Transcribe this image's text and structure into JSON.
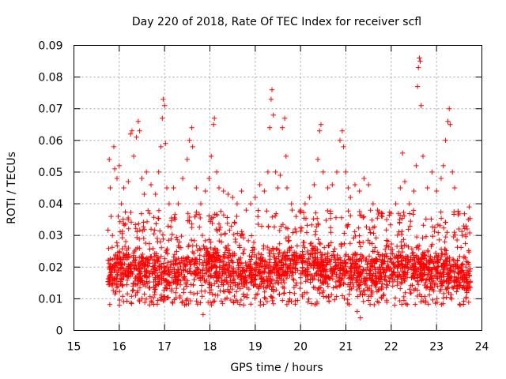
{
  "chart_data": {
    "type": "scatter",
    "title": "Day 220 of 2018, Rate Of TEC Index for receiver scfl",
    "xlabel": "GPS time / hours",
    "ylabel": "ROTI / TECUs",
    "xlim": [
      15,
      24
    ],
    "ylim": [
      0,
      0.09
    ],
    "xticks": [
      "15",
      "16",
      "17",
      "18",
      "19",
      "20",
      "21",
      "22",
      "23",
      "24"
    ],
    "yticks": [
      "0",
      "0.01",
      "0.02",
      "0.03",
      "0.04",
      "0.05",
      "0.06",
      "0.07",
      "0.08",
      "0.09"
    ],
    "grid": true,
    "marker": "+",
    "color": "#ff0000",
    "x_range_of_data": [
      15.75,
      23.75
    ],
    "series": [
      {
        "name": "ROTI",
        "points": [
          [
            15.78,
            0.054
          ],
          [
            15.8,
            0.045
          ],
          [
            15.82,
            0.036
          ],
          [
            15.85,
            0.03
          ],
          [
            15.88,
            0.058
          ],
          [
            15.9,
            0.051
          ],
          [
            15.95,
            0.048
          ],
          [
            16.0,
            0.052
          ],
          [
            16.05,
            0.04
          ],
          [
            16.1,
            0.045
          ],
          [
            16.2,
            0.047
          ],
          [
            16.25,
            0.062
          ],
          [
            16.28,
            0.063
          ],
          [
            16.32,
            0.055
          ],
          [
            16.38,
            0.061
          ],
          [
            16.42,
            0.066
          ],
          [
            16.45,
            0.063
          ],
          [
            16.5,
            0.048
          ],
          [
            16.55,
            0.043
          ],
          [
            16.6,
            0.05
          ],
          [
            16.7,
            0.046
          ],
          [
            16.8,
            0.043
          ],
          [
            16.87,
            0.05
          ],
          [
            16.92,
            0.058
          ],
          [
            16.95,
            0.067
          ],
          [
            16.97,
            0.073
          ],
          [
            17.0,
            0.071
          ],
          [
            17.02,
            0.059
          ],
          [
            17.05,
            0.045
          ],
          [
            17.1,
            0.04
          ],
          [
            17.2,
            0.045
          ],
          [
            17.3,
            0.04
          ],
          [
            17.4,
            0.048
          ],
          [
            17.5,
            0.054
          ],
          [
            17.55,
            0.06
          ],
          [
            17.6,
            0.064
          ],
          [
            17.62,
            0.058
          ],
          [
            17.7,
            0.045
          ],
          [
            17.8,
            0.04
          ],
          [
            17.9,
            0.044
          ],
          [
            17.98,
            0.048
          ],
          [
            18.03,
            0.055
          ],
          [
            18.08,
            0.065
          ],
          [
            18.1,
            0.067
          ],
          [
            18.15,
            0.05
          ],
          [
            18.2,
            0.045
          ],
          [
            18.3,
            0.044
          ],
          [
            18.4,
            0.043
          ],
          [
            18.5,
            0.042
          ],
          [
            18.6,
            0.04
          ],
          [
            18.7,
            0.044
          ],
          [
            18.8,
            0.038
          ],
          [
            18.9,
            0.04
          ],
          [
            19.0,
            0.042
          ],
          [
            19.1,
            0.046
          ],
          [
            19.2,
            0.044
          ],
          [
            19.28,
            0.05
          ],
          [
            19.32,
            0.064
          ],
          [
            19.35,
            0.073
          ],
          [
            19.37,
            0.076
          ],
          [
            19.4,
            0.068
          ],
          [
            19.45,
            0.05
          ],
          [
            19.5,
            0.045
          ],
          [
            19.55,
            0.049
          ],
          [
            19.6,
            0.064
          ],
          [
            19.65,
            0.067
          ],
          [
            19.68,
            0.055
          ],
          [
            19.7,
            0.045
          ],
          [
            19.8,
            0.04
          ],
          [
            19.9,
            0.036
          ],
          [
            20.0,
            0.038
          ],
          [
            20.1,
            0.04
          ],
          [
            20.2,
            0.042
          ],
          [
            20.3,
            0.046
          ],
          [
            20.38,
            0.054
          ],
          [
            20.42,
            0.063
          ],
          [
            20.45,
            0.065
          ],
          [
            20.5,
            0.05
          ],
          [
            20.6,
            0.045
          ],
          [
            20.7,
            0.046
          ],
          [
            20.8,
            0.05
          ],
          [
            20.87,
            0.06
          ],
          [
            20.92,
            0.063
          ],
          [
            20.95,
            0.058
          ],
          [
            21.0,
            0.05
          ],
          [
            21.05,
            0.045
          ],
          [
            21.1,
            0.042
          ],
          [
            21.2,
            0.046
          ],
          [
            21.3,
            0.044
          ],
          [
            21.4,
            0.048
          ],
          [
            21.5,
            0.046
          ],
          [
            21.6,
            0.04
          ],
          [
            21.7,
            0.038
          ],
          [
            21.8,
            0.036
          ],
          [
            21.9,
            0.035
          ],
          [
            22.0,
            0.037
          ],
          [
            22.1,
            0.04
          ],
          [
            22.2,
            0.045
          ],
          [
            22.25,
            0.056
          ],
          [
            22.3,
            0.047
          ],
          [
            22.4,
            0.04
          ],
          [
            22.5,
            0.044
          ],
          [
            22.55,
            0.052
          ],
          [
            22.58,
            0.077
          ],
          [
            22.6,
            0.083
          ],
          [
            22.62,
            0.086
          ],
          [
            22.64,
            0.085
          ],
          [
            22.66,
            0.071
          ],
          [
            22.7,
            0.055
          ],
          [
            22.8,
            0.045
          ],
          [
            22.9,
            0.05
          ],
          [
            23.0,
            0.044
          ],
          [
            23.1,
            0.048
          ],
          [
            23.15,
            0.052
          ],
          [
            23.2,
            0.06
          ],
          [
            23.25,
            0.066
          ],
          [
            23.28,
            0.07
          ],
          [
            23.3,
            0.065
          ],
          [
            23.35,
            0.05
          ],
          [
            23.4,
            0.045
          ],
          [
            23.5,
            0.037
          ],
          [
            23.6,
            0.033
          ],
          [
            23.7,
            0.035
          ],
          [
            23.72,
            0.039
          ],
          [
            21.32,
            0.004
          ],
          [
            17.85,
            0.005
          ],
          [
            21.25,
            0.006
          ]
        ]
      }
    ],
    "band": {
      "x_start": 15.75,
      "x_end": 23.75,
      "baseline": [
        [
          15.75,
          0.018
        ],
        [
          16.0,
          0.02
        ],
        [
          16.5,
          0.019
        ],
        [
          17.0,
          0.018
        ],
        [
          17.5,
          0.02
        ],
        [
          18.0,
          0.021
        ],
        [
          18.5,
          0.019
        ],
        [
          19.0,
          0.018
        ],
        [
          19.5,
          0.02
        ],
        [
          20.0,
          0.022
        ],
        [
          20.5,
          0.02
        ],
        [
          21.0,
          0.019
        ],
        [
          21.5,
          0.018
        ],
        [
          22.0,
          0.019
        ],
        [
          22.5,
          0.02
        ],
        [
          23.0,
          0.019
        ],
        [
          23.5,
          0.018
        ],
        [
          23.75,
          0.017
        ]
      ],
      "spread_low": 0.008,
      "spread_high": 0.038
    }
  }
}
